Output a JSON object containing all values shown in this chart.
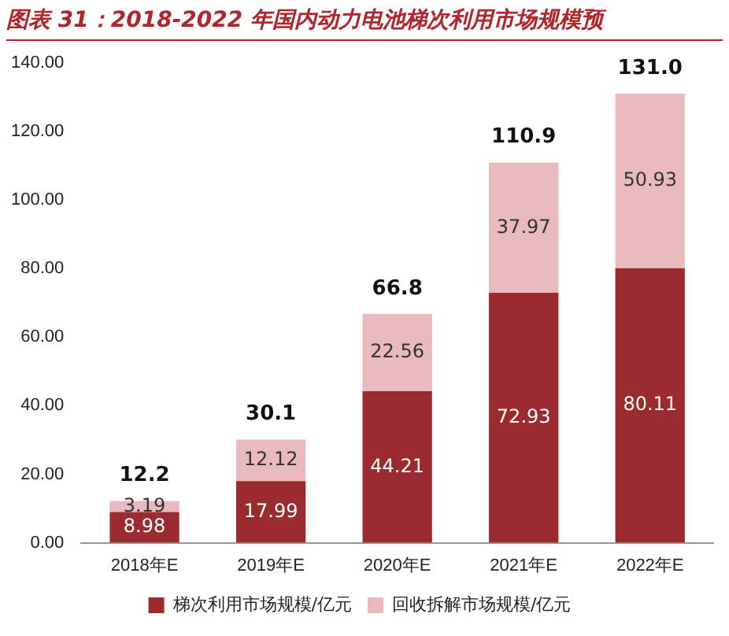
{
  "chart_data": {
    "type": "bar",
    "title": "图表 31：2018-2022 年国内动力电池梯次利用市场规模预",
    "categories": [
      "2018年E",
      "2019年E",
      "2020年E",
      "2021年E",
      "2022年E"
    ],
    "series": [
      {
        "name": "梯次利用市场规模/亿元",
        "color": "#9b2b2f",
        "values": [
          8.98,
          17.99,
          44.21,
          72.93,
          80.11
        ]
      },
      {
        "name": "回收拆解市场规模/亿元",
        "color": "#e9b9bd",
        "values": [
          3.19,
          12.12,
          22.56,
          37.97,
          50.93
        ]
      }
    ],
    "stacked": true,
    "data_labels": true,
    "totals": [
      "12.2",
      "30.1",
      "66.8",
      "110.9",
      "131.0"
    ],
    "ylim": [
      0,
      140
    ],
    "yticks": [
      {
        "value": 0,
        "label": "0.00"
      },
      {
        "value": 20,
        "label": "20.00"
      },
      {
        "value": 40,
        "label": "40.00"
      },
      {
        "value": 60,
        "label": "60.00"
      },
      {
        "value": 80,
        "label": "80.00"
      },
      {
        "value": 100,
        "label": "100.00"
      },
      {
        "value": 120,
        "label": "120.00"
      },
      {
        "value": 140,
        "label": "140.00"
      }
    ],
    "grid": false,
    "legend": "bottom"
  }
}
